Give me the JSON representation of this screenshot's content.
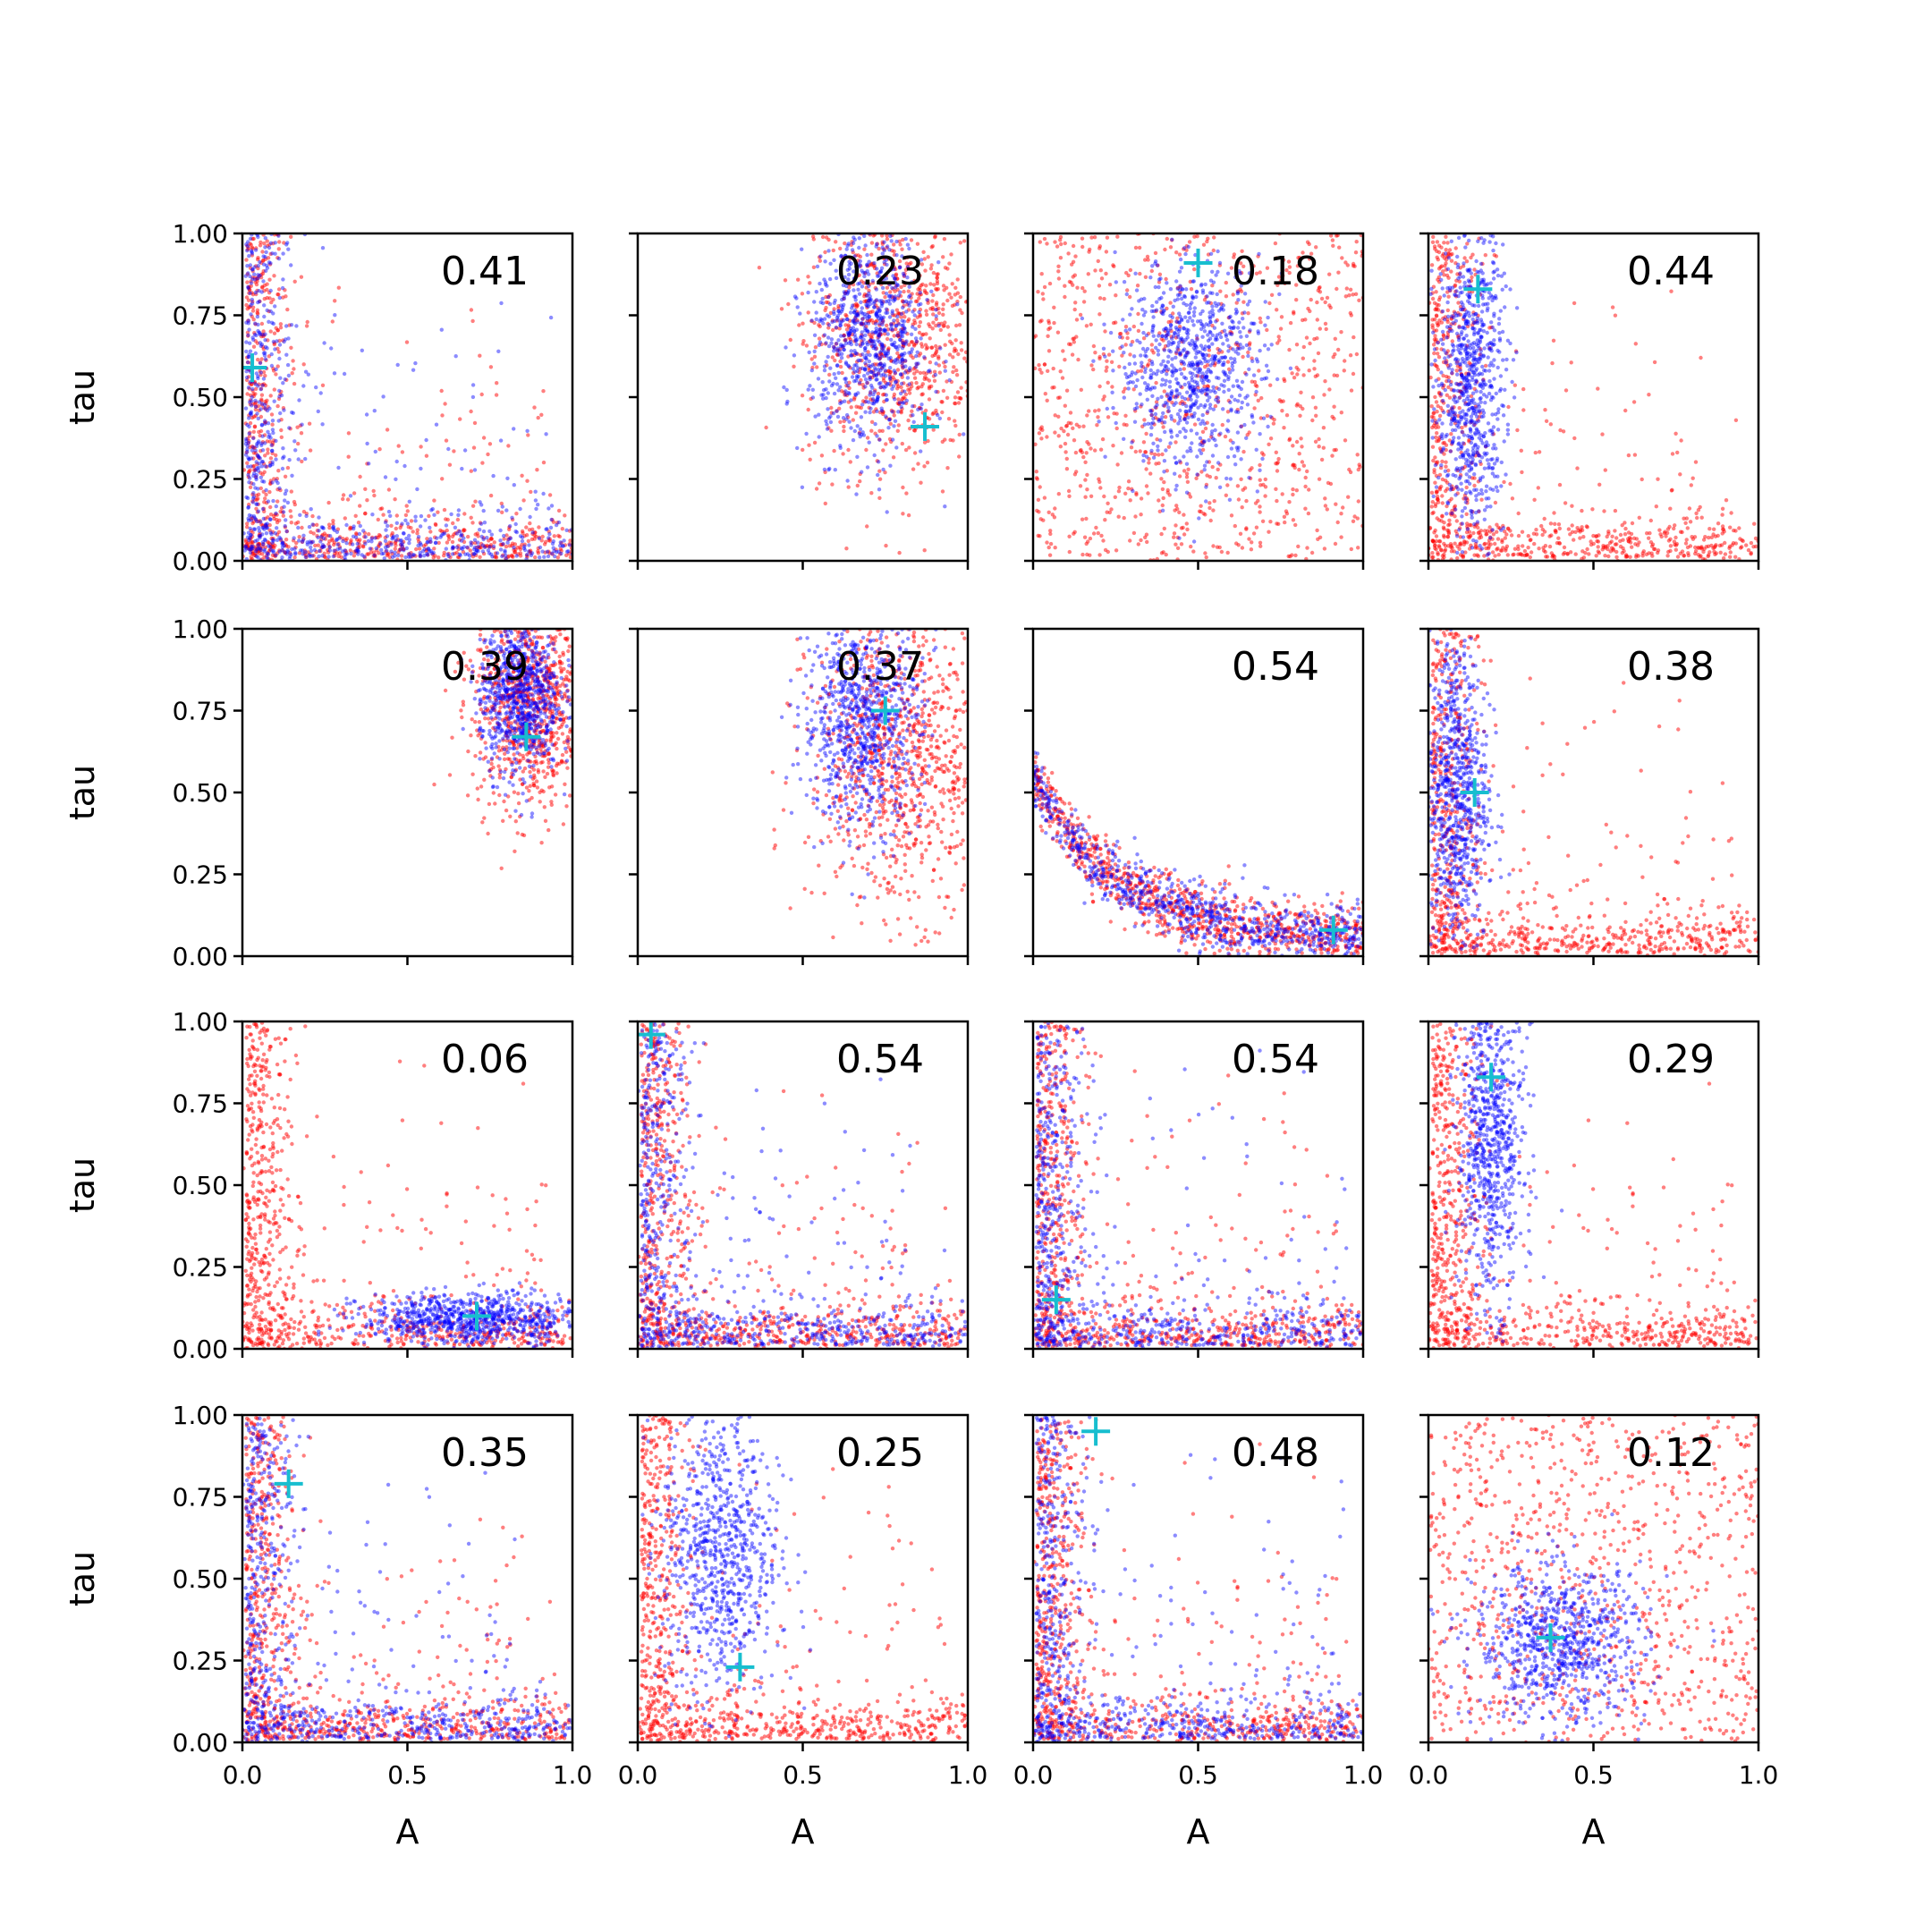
{
  "chart_data": {
    "type": "scatter",
    "layout": {
      "rows": 4,
      "cols": 4
    },
    "xlabel": "A",
    "ylabel": "tau",
    "xlim": [
      0,
      1
    ],
    "ylim": [
      0,
      1
    ],
    "xticks": [
      "0.0",
      "0.5",
      "1.0"
    ],
    "yticks": [
      "0.00",
      "0.25",
      "0.50",
      "0.75",
      "1.00"
    ],
    "colors": {
      "posterior": "#0000ff",
      "prior": "#ff0000",
      "truth": "#17becf"
    },
    "panels": [
      {
        "label": "0.41",
        "truth": [
          0.03,
          0.59
        ],
        "red": "L",
        "blue": "L"
      },
      {
        "label": "0.23",
        "truth": [
          0.87,
          0.41
        ],
        "red": "blob:0.78,0.70,0.14,0.22",
        "blue": "blob:0.70,0.68,0.09,0.17"
      },
      {
        "label": "0.18",
        "truth": [
          0.5,
          0.91
        ],
        "red": "wide",
        "blue": "blob:0.48,0.60,0.11,0.16"
      },
      {
        "label": "0.44",
        "truth": [
          0.15,
          0.83
        ],
        "red": "L",
        "blue": "vert:0.13,0.55"
      },
      {
        "label": "0.39",
        "truth": [
          0.86,
          0.67
        ],
        "red": "blob:0.88,0.78,0.09,0.17",
        "blue": "blob:0.84,0.80,0.06,0.12"
      },
      {
        "label": "0.37",
        "truth": [
          0.75,
          0.75
        ],
        "red": "blob:0.80,0.60,0.14,0.23",
        "blue": "blob:0.68,0.72,0.09,0.16"
      },
      {
        "label": "0.54",
        "truth": [
          0.91,
          0.08
        ],
        "red": "curve",
        "blue": "curve"
      },
      {
        "label": "0.38",
        "truth": [
          0.14,
          0.5
        ],
        "red": "L",
        "blue": "vert:0.08,0.50"
      },
      {
        "label": "0.06",
        "truth": [
          0.71,
          0.1
        ],
        "red": "L",
        "blue": "horiz:0.70,0.09"
      },
      {
        "label": "0.54",
        "truth": [
          0.04,
          0.96
        ],
        "red": "L",
        "blue": "L"
      },
      {
        "label": "0.54",
        "truth": [
          0.07,
          0.15
        ],
        "red": "L",
        "blue": "L"
      },
      {
        "label": "0.29",
        "truth": [
          0.19,
          0.83
        ],
        "red": "L",
        "blue": "vert:0.19,0.65"
      },
      {
        "label": "0.35",
        "truth": [
          0.14,
          0.79
        ],
        "red": "L",
        "blue": "L"
      },
      {
        "label": "0.25",
        "truth": [
          0.31,
          0.23
        ],
        "red": "L",
        "blue": "blob:0.25,0.58,0.09,0.22"
      },
      {
        "label": "0.48",
        "truth": [
          0.19,
          0.95
        ],
        "red": "L",
        "blue": "L"
      },
      {
        "label": "0.12",
        "truth": [
          0.37,
          0.32
        ],
        "red": "wide",
        "blue": "blob:0.40,0.30,0.13,0.12"
      }
    ]
  }
}
